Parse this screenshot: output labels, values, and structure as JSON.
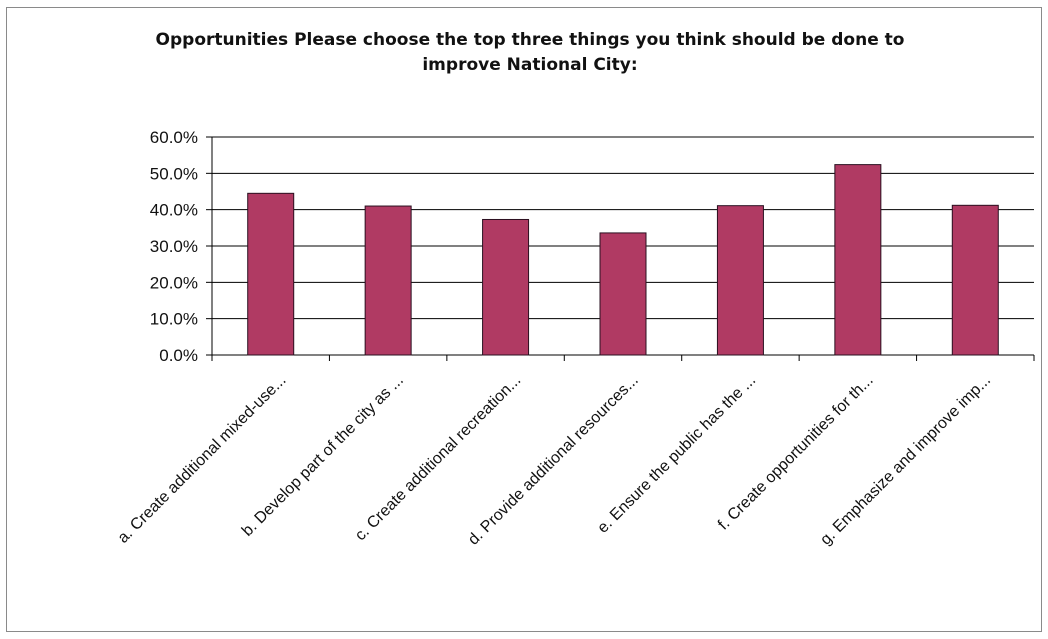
{
  "chart_data": {
    "type": "bar",
    "title": "Opportunities  Please choose the top three things you think should be done to improve National City:",
    "categories": [
      "a. Create additional mixed-use...",
      "b. Develop part of the city as ...",
      "c. Create additional recreation...",
      "d. Provide additional resources...",
      "e. Ensure the public has the ...",
      "f. Create opportunities for th...",
      "g. Emphasize and improve imp..."
    ],
    "values": [
      44.5,
      41.0,
      37.3,
      33.6,
      41.1,
      52.4,
      41.2
    ],
    "ylim": [
      0,
      60
    ],
    "yticks": [
      "0.0%",
      "10.0%",
      "20.0%",
      "30.0%",
      "40.0%",
      "50.0%",
      "60.0%"
    ],
    "grid": true,
    "colors": {
      "bar": "#b03a63",
      "bar_border": "#2a1020",
      "grid": "#000000"
    }
  }
}
